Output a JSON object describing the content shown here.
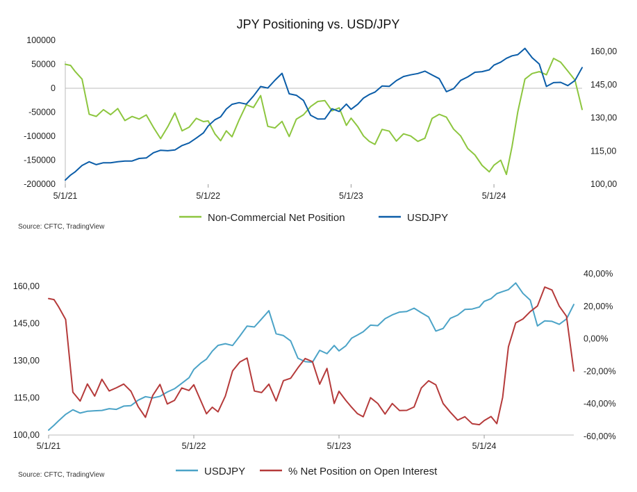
{
  "chart_data": [
    {
      "type": "line",
      "title": "JPY Positioning vs. USD/JPY",
      "source": "Source: CFTC, TradingView",
      "x_ticks": [
        "5/1/21",
        "5/1/22",
        "5/1/23",
        "5/1/24"
      ],
      "x_range": [
        2021.333,
        2024.95
      ],
      "y_left": {
        "ticks": [
          "100000",
          "50000",
          "0",
          "-50000",
          "-100000",
          "-150000",
          "-200000"
        ],
        "range": [
          -200000,
          100000
        ]
      },
      "y_right": {
        "ticks": [
          "160,00",
          "145,00",
          "130,00",
          "115,00",
          "100,00"
        ],
        "range": [
          100,
          160
        ]
      },
      "grid": false,
      "legend_position": "bottom",
      "series": [
        {
          "name": "Non-Commercial Net Position",
          "axis": "left",
          "color": "#8DC63F",
          "x": [
            2021.333,
            2021.37,
            2021.4,
            2021.45,
            2021.5,
            2021.55,
            2021.6,
            2021.65,
            2021.7,
            2021.75,
            2021.8,
            2021.85,
            2021.9,
            2021.95,
            2022.0,
            2022.05,
            2022.1,
            2022.15,
            2022.2,
            2022.25,
            2022.3,
            2022.333,
            2022.38,
            2022.42,
            2022.46,
            2022.5,
            2022.55,
            2022.6,
            2022.65,
            2022.7,
            2022.75,
            2022.8,
            2022.85,
            2022.9,
            2022.95,
            2023.0,
            2023.05,
            2023.1,
            2023.15,
            2023.2,
            2023.25,
            2023.3,
            2023.333,
            2023.38,
            2023.42,
            2023.46,
            2023.5,
            2023.55,
            2023.6,
            2023.65,
            2023.7,
            2023.75,
            2023.8,
            2023.85,
            2023.9,
            2023.95,
            2024.0,
            2024.05,
            2024.1,
            2024.15,
            2024.2,
            2024.25,
            2024.3,
            2024.333,
            2024.38,
            2024.42,
            2024.46,
            2024.5,
            2024.55,
            2024.6,
            2024.65,
            2024.7,
            2024.75,
            2024.8,
            2024.85,
            2024.9,
            2024.95
          ],
          "y": [
            50000,
            48000,
            35000,
            20000,
            -55000,
            -58000,
            -45000,
            -55000,
            -42000,
            -68000,
            -58000,
            -65000,
            -55000,
            -82000,
            -105000,
            -80000,
            -52000,
            -88000,
            -82000,
            -62000,
            -70000,
            -68000,
            -95000,
            -110000,
            -88000,
            -102000,
            -65000,
            -35000,
            -40000,
            -15000,
            -80000,
            -82000,
            -70000,
            -100000,
            -65000,
            -55000,
            -38000,
            -28000,
            -25000,
            -48000,
            -40000,
            -78000,
            -62000,
            -80000,
            -100000,
            -110000,
            -118000,
            -85000,
            -90000,
            -110000,
            -95000,
            -100000,
            -110000,
            -105000,
            -62000,
            -55000,
            -60000,
            -85000,
            -100000,
            -125000,
            -140000,
            -160000,
            -175000,
            -160000,
            -150000,
            -180000,
            -120000,
            -50000,
            20000,
            30000,
            35000,
            28000,
            62000,
            55000,
            35000,
            18000,
            -45000
          ]
        },
        {
          "name": "USDJPY",
          "axis": "right",
          "color": "#0B5DA8",
          "x": [
            2021.333,
            2021.37,
            2021.4,
            2021.45,
            2021.5,
            2021.55,
            2021.6,
            2021.65,
            2021.7,
            2021.75,
            2021.8,
            2021.85,
            2021.9,
            2021.95,
            2022.0,
            2022.05,
            2022.1,
            2022.15,
            2022.2,
            2022.25,
            2022.3,
            2022.333,
            2022.38,
            2022.42,
            2022.46,
            2022.5,
            2022.55,
            2022.6,
            2022.65,
            2022.7,
            2022.75,
            2022.8,
            2022.85,
            2022.9,
            2022.95,
            2023.0,
            2023.05,
            2023.1,
            2023.15,
            2023.2,
            2023.25,
            2023.3,
            2023.333,
            2023.38,
            2023.42,
            2023.46,
            2023.5,
            2023.55,
            2023.6,
            2023.65,
            2023.7,
            2023.75,
            2023.8,
            2023.85,
            2023.9,
            2023.95,
            2024.0,
            2024.05,
            2024.1,
            2024.15,
            2024.2,
            2024.25,
            2024.3,
            2024.333,
            2024.38,
            2024.42,
            2024.46,
            2024.5,
            2024.55,
            2024.6,
            2024.65,
            2024.7,
            2024.75,
            2024.8,
            2024.85,
            2024.9,
            2024.95
          ],
          "y": [
            102,
            104,
            105.5,
            108.5,
            110,
            109,
            109.5,
            109.8,
            110,
            110.5,
            110.5,
            111.5,
            112,
            114,
            115.5,
            115,
            115.5,
            117.5,
            118.5,
            121,
            123,
            126.5,
            129,
            130.5,
            134,
            136,
            137,
            136,
            140,
            144,
            143.5,
            147,
            150,
            141,
            140,
            138,
            131,
            129.5,
            129.5,
            134,
            133,
            136,
            134,
            136,
            139,
            140.5,
            141.5,
            144.5,
            144,
            147,
            148.5,
            149.5,
            150,
            151,
            149.5,
            147.5,
            142,
            143,
            147,
            148.5,
            150.5,
            151,
            151.5,
            154,
            155,
            157,
            158,
            158.5,
            161.5,
            157,
            154.5,
            144,
            146,
            146,
            144.5,
            147,
            152.5
          ]
        }
      ]
    },
    {
      "type": "line",
      "source": "Source: CFTC, TradingView",
      "x_ticks": [
        "5/1/21",
        "5/1/22",
        "5/1/23",
        "5/1/24"
      ],
      "x_range": [
        2021.333,
        2024.95
      ],
      "y_left": {
        "ticks": [
          "160,00",
          "145,00",
          "130,00",
          "115,00",
          "100,00"
        ],
        "range": [
          100,
          160
        ]
      },
      "y_right": {
        "ticks": [
          "40,00%",
          "20,00%",
          "0,00%",
          "-20,00%",
          "-40,00%",
          "-60,00%"
        ],
        "range": [
          -60,
          40
        ]
      },
      "grid": false,
      "legend_position": "bottom",
      "series": [
        {
          "name": "USDJPY",
          "axis": "left",
          "color": "#4BA3C7",
          "x": [
            2021.333,
            2021.37,
            2021.4,
            2021.45,
            2021.5,
            2021.55,
            2021.6,
            2021.65,
            2021.7,
            2021.75,
            2021.8,
            2021.85,
            2021.9,
            2021.95,
            2022.0,
            2022.05,
            2022.1,
            2022.15,
            2022.2,
            2022.25,
            2022.3,
            2022.333,
            2022.38,
            2022.42,
            2022.46,
            2022.5,
            2022.55,
            2022.6,
            2022.65,
            2022.7,
            2022.75,
            2022.8,
            2022.85,
            2022.9,
            2022.95,
            2023.0,
            2023.05,
            2023.1,
            2023.15,
            2023.2,
            2023.25,
            2023.3,
            2023.333,
            2023.38,
            2023.42,
            2023.46,
            2023.5,
            2023.55,
            2023.6,
            2023.65,
            2023.7,
            2023.75,
            2023.8,
            2023.85,
            2023.9,
            2023.95,
            2024.0,
            2024.05,
            2024.1,
            2024.15,
            2024.2,
            2024.25,
            2024.3,
            2024.333,
            2024.38,
            2024.42,
            2024.46,
            2024.5,
            2024.55,
            2024.6,
            2024.65,
            2024.7,
            2024.75,
            2024.8,
            2024.85,
            2024.9,
            2024.95
          ],
          "y": [
            102,
            104,
            105.5,
            108.5,
            110,
            109,
            109.5,
            109.8,
            110,
            110.5,
            110.5,
            111.5,
            112,
            114,
            115.5,
            115,
            115.5,
            117.5,
            118.5,
            121,
            123,
            126.5,
            129,
            130.5,
            134,
            136,
            137,
            136,
            140,
            144,
            143.5,
            147,
            150,
            141,
            140,
            138,
            131,
            129.5,
            129.5,
            134,
            133,
            136,
            134,
            136,
            139,
            140.5,
            141.5,
            144.5,
            144,
            147,
            148.5,
            149.5,
            150,
            151,
            149.5,
            147.5,
            142,
            143,
            147,
            148.5,
            150.5,
            151,
            151.5,
            154,
            155,
            157,
            158,
            158.5,
            161.5,
            157,
            154.5,
            144,
            146,
            146,
            144.5,
            147,
            152.5
          ]
        },
        {
          "name": "% Net Position on Open Interest",
          "axis": "right",
          "color": "#B53A3A",
          "x": [
            2021.333,
            2021.37,
            2021.4,
            2021.45,
            2021.5,
            2021.55,
            2021.6,
            2021.65,
            2021.7,
            2021.75,
            2021.8,
            2021.85,
            2021.9,
            2021.95,
            2022.0,
            2022.05,
            2022.1,
            2022.15,
            2022.2,
            2022.25,
            2022.3,
            2022.333,
            2022.38,
            2022.42,
            2022.46,
            2022.5,
            2022.55,
            2022.6,
            2022.65,
            2022.7,
            2022.75,
            2022.8,
            2022.85,
            2022.9,
            2022.95,
            2023.0,
            2023.05,
            2023.1,
            2023.15,
            2023.2,
            2023.25,
            2023.3,
            2023.333,
            2023.38,
            2023.42,
            2023.46,
            2023.5,
            2023.55,
            2023.6,
            2023.65,
            2023.7,
            2023.75,
            2023.8,
            2023.85,
            2023.9,
            2023.95,
            2024.0,
            2024.05,
            2024.1,
            2024.15,
            2024.2,
            2024.25,
            2024.3,
            2024.333,
            2024.38,
            2024.42,
            2024.46,
            2024.5,
            2024.55,
            2024.6,
            2024.65,
            2024.7,
            2024.75,
            2024.8,
            2024.85,
            2024.9,
            2024.95
          ],
          "y": [
            25,
            24,
            20,
            12,
            -33,
            -38,
            -28,
            -35,
            -25,
            -32,
            -30,
            -28,
            -32,
            -42,
            -48,
            -35,
            -28,
            -40,
            -38,
            -30,
            -32,
            -28,
            -38,
            -46,
            -42,
            -45,
            -35,
            -20,
            -14,
            -12,
            -32,
            -33,
            -28,
            -38,
            -26,
            -24,
            -18,
            -12,
            -14,
            -28,
            -18,
            -40,
            -32,
            -38,
            -42,
            -46,
            -48,
            -36,
            -40,
            -46,
            -40,
            -44,
            -44,
            -42,
            -30,
            -26,
            -28,
            -40,
            -45,
            -50,
            -48,
            -52,
            -53,
            -50,
            -48,
            -52,
            -36,
            -5,
            10,
            12,
            17,
            20,
            32,
            30,
            20,
            14,
            -20
          ]
        }
      ]
    }
  ],
  "legend_top": [
    "Non-Commercial Net Position",
    "USDJPY"
  ],
  "legend_bottom": [
    "USDJPY",
    "% Net Position on Open Interest"
  ],
  "colors": {
    "green": "#8DC63F",
    "dark_blue": "#0B5DA8",
    "light_blue": "#4BA3C7",
    "red": "#B53A3A"
  }
}
